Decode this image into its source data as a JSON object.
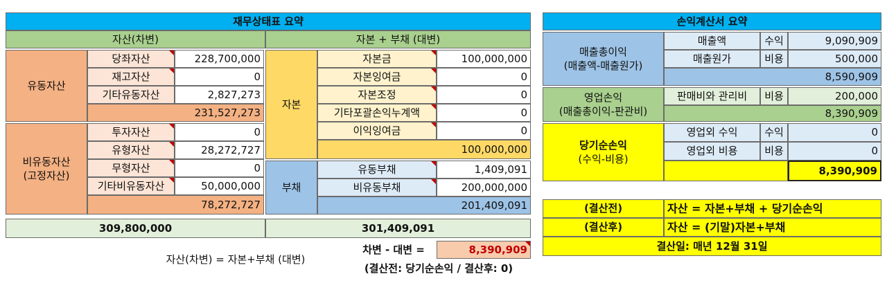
{
  "balance_sheet": {
    "title": "재무상태표 요약",
    "assets": {
      "header": "자산(차변)",
      "current": {
        "label": "유동자산",
        "items": [
          {
            "name": "당좌자산",
            "amount": "228,700,000"
          },
          {
            "name": "재고자산",
            "amount": "0"
          },
          {
            "name": "기타유동자산",
            "amount": "2,827,273"
          }
        ],
        "subtotal": "231,527,273"
      },
      "noncurrent": {
        "label_lines": [
          "비유동자산",
          "(고정자산)"
        ],
        "items": [
          {
            "name": "투자자산",
            "amount": "0"
          },
          {
            "name": "유형자산",
            "amount": "28,272,727"
          },
          {
            "name": "무형자산",
            "amount": "0"
          },
          {
            "name": "기타비유동자산",
            "amount": "50,000,000"
          }
        ],
        "subtotal": "78,272,727"
      },
      "total": "309,800,000"
    },
    "claims": {
      "header": "자본 + 부채 (대변)",
      "equity": {
        "label": "자본",
        "items": [
          {
            "name": "자본금",
            "amount": "100,000,000"
          },
          {
            "name": "자본잉여금",
            "amount": "0"
          },
          {
            "name": "자본조정",
            "amount": "0"
          },
          {
            "name": "기타포괄손익누계액",
            "amount": "0"
          },
          {
            "name": "이익잉여금",
            "amount": "0"
          }
        ],
        "subtotal": "100,000,000"
      },
      "liabilities": {
        "label": "부채",
        "items": [
          {
            "name": "유동부채",
            "amount": "1,409,091"
          },
          {
            "name": "비유동부채",
            "amount": "200,000,000"
          }
        ],
        "subtotal": "201,409,091"
      },
      "total": "301,409,091"
    },
    "notes": {
      "identity": "자산(차변) = 자본+부채 (대변)",
      "difference_label": "차변 - 대변 =",
      "difference": "8,390,909",
      "difference_note": "(결산전: 당기순손익 / 결산후: 0)"
    }
  },
  "income_statement": {
    "title": "손익계산서 요약",
    "gross": {
      "label_lines": [
        "매출총이익",
        "(매출액-매출원가)"
      ],
      "items": [
        {
          "name": "매출액",
          "type": "수익",
          "amount": "9,090,909"
        },
        {
          "name": "매출원가",
          "type": "비용",
          "amount": "500,000"
        }
      ],
      "subtotal": "8,590,909"
    },
    "operating": {
      "label_lines": [
        "영업손익",
        "(매출총이익-판관비)"
      ],
      "items": [
        {
          "name": "판매비와 관리비",
          "type": "비용",
          "amount": "200,000"
        }
      ],
      "subtotal": "8,390,909"
    },
    "net": {
      "label_lines": [
        "당기순손익",
        "(수익-비용)"
      ],
      "items": [
        {
          "name": "영업외 수익",
          "type": "수익",
          "amount": "0"
        },
        {
          "name": "영업외 비용",
          "type": "비용",
          "amount": "0"
        }
      ],
      "subtotal": "8,390,909"
    }
  },
  "summary": {
    "rows": [
      {
        "label": "(결산전)",
        "text": "자산 = 자본+부채 + 당기순손익"
      },
      {
        "label": "(결산후)",
        "text": "자산 = (기말)자본+부채"
      }
    ],
    "closing": "결산일: 매년 12월 31일"
  }
}
